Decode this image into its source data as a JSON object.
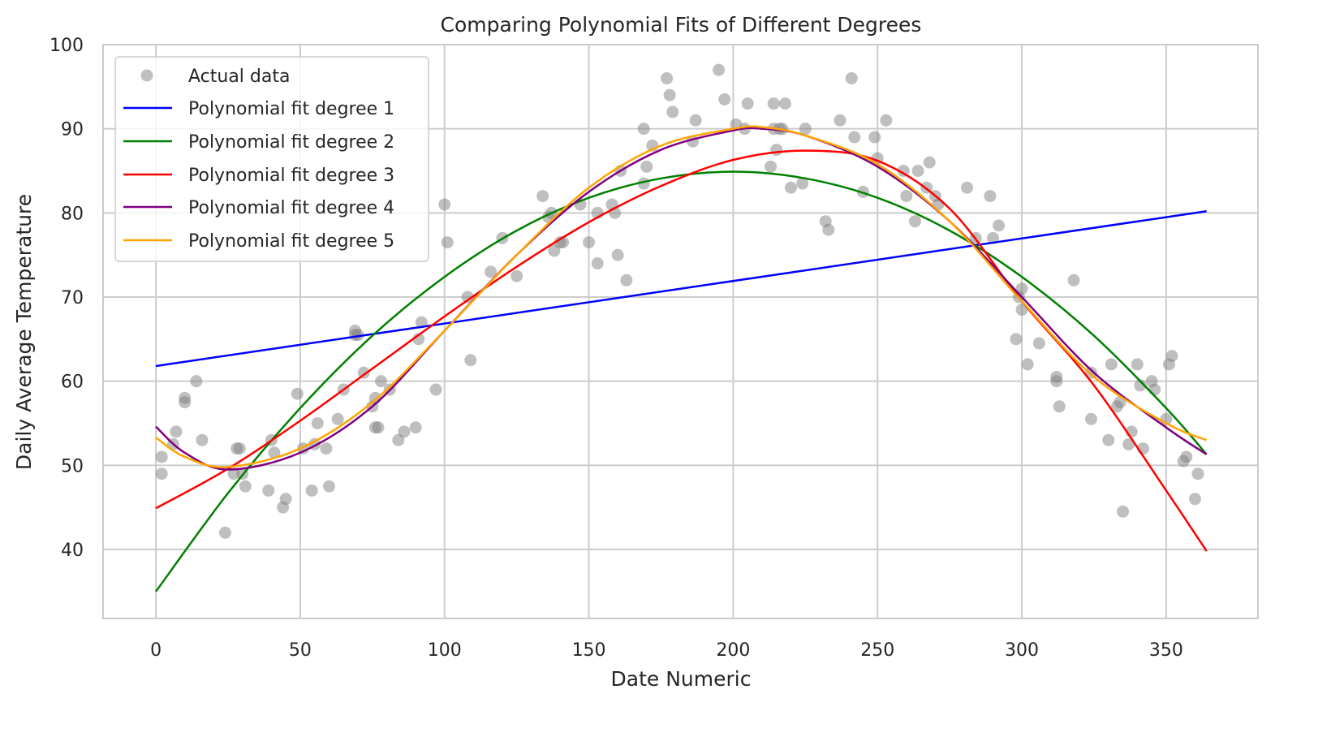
{
  "chart_data": {
    "type": "scatter",
    "title": "Comparing Polynomial Fits of Different Degrees",
    "xlabel": "Date Numeric",
    "ylabel": "Daily Average Temperature",
    "xlim": [
      -18.3,
      381.8
    ],
    "ylim": [
      31.8,
      100
    ],
    "xticks": [
      0,
      50,
      100,
      150,
      200,
      250,
      300,
      350
    ],
    "yticks": [
      40,
      50,
      60,
      70,
      80,
      90,
      100
    ],
    "grid": true,
    "legend_position": "top-left",
    "scatter": {
      "name": "Actual data",
      "color": "#808080",
      "points": [
        [
          2,
          51
        ],
        [
          2,
          49
        ],
        [
          7,
          54
        ],
        [
          6,
          52.5
        ],
        [
          10,
          58
        ],
        [
          10,
          57.5
        ],
        [
          14,
          60
        ],
        [
          16,
          53
        ],
        [
          24,
          42
        ],
        [
          27,
          49
        ],
        [
          28,
          52
        ],
        [
          29,
          52
        ],
        [
          30,
          49
        ],
        [
          31,
          47.5
        ],
        [
          39,
          47
        ],
        [
          40,
          53
        ],
        [
          41,
          51.5
        ],
        [
          44,
          45
        ],
        [
          45,
          46
        ],
        [
          49,
          58.5
        ],
        [
          51,
          52
        ],
        [
          54,
          47
        ],
        [
          55,
          52.5
        ],
        [
          56,
          55
        ],
        [
          59,
          52
        ],
        [
          60,
          47.5
        ],
        [
          63,
          55.5
        ],
        [
          65,
          59
        ],
        [
          69,
          66
        ],
        [
          69,
          65.5
        ],
        [
          70,
          65.5
        ],
        [
          72,
          61
        ],
        [
          75,
          57
        ],
        [
          76,
          54.5
        ],
        [
          76,
          58
        ],
        [
          77,
          54.5
        ],
        [
          78,
          60
        ],
        [
          81,
          59
        ],
        [
          84,
          53
        ],
        [
          86,
          54
        ],
        [
          90,
          54.5
        ],
        [
          91,
          65
        ],
        [
          92,
          67
        ],
        [
          97,
          59
        ],
        [
          100,
          81
        ],
        [
          101,
          76.5
        ],
        [
          108,
          70
        ],
        [
          109,
          62.5
        ],
        [
          116,
          73
        ],
        [
          120,
          77
        ],
        [
          125,
          72.5
        ],
        [
          134,
          82
        ],
        [
          136,
          79.5
        ],
        [
          137,
          80
        ],
        [
          138,
          75.5
        ],
        [
          140,
          76.5
        ],
        [
          141,
          76.5
        ],
        [
          147,
          81
        ],
        [
          150,
          76.5
        ],
        [
          153,
          74
        ],
        [
          153,
          80
        ],
        [
          158,
          81
        ],
        [
          159,
          80
        ],
        [
          160,
          75
        ],
        [
          161,
          85
        ],
        [
          163,
          72
        ],
        [
          169,
          90
        ],
        [
          169,
          83.5
        ],
        [
          170,
          85.5
        ],
        [
          172,
          88
        ],
        [
          177,
          96
        ],
        [
          178,
          94
        ],
        [
          179,
          92
        ],
        [
          186,
          88.5
        ],
        [
          187,
          91
        ],
        [
          195,
          97
        ],
        [
          197,
          93.5
        ],
        [
          201,
          90.5
        ],
        [
          204,
          90
        ],
        [
          205,
          93
        ],
        [
          213,
          85.5
        ],
        [
          214,
          93
        ],
        [
          214,
          90
        ],
        [
          215,
          87.5
        ],
        [
          216,
          90
        ],
        [
          217,
          90
        ],
        [
          218,
          93
        ],
        [
          220,
          83
        ],
        [
          224,
          83.5
        ],
        [
          225,
          90
        ],
        [
          232,
          79
        ],
        [
          233,
          78
        ],
        [
          237,
          91
        ],
        [
          241,
          96
        ],
        [
          242,
          89
        ],
        [
          245,
          82.5
        ],
        [
          249,
          89
        ],
        [
          250,
          86.5
        ],
        [
          253,
          91
        ],
        [
          259,
          85
        ],
        [
          260,
          82
        ],
        [
          263,
          79
        ],
        [
          264,
          85
        ],
        [
          267,
          83
        ],
        [
          268,
          86
        ],
        [
          270,
          82
        ],
        [
          271,
          81
        ],
        [
          281,
          83
        ],
        [
          284,
          77
        ],
        [
          289,
          82
        ],
        [
          290,
          77
        ],
        [
          292,
          78.5
        ],
        [
          298,
          65
        ],
        [
          299,
          70
        ],
        [
          300,
          68.5
        ],
        [
          300,
          71
        ],
        [
          302,
          62
        ],
        [
          306,
          64.5
        ],
        [
          312,
          60.5
        ],
        [
          312,
          60
        ],
        [
          313,
          57
        ],
        [
          318,
          72
        ],
        [
          324,
          55.5
        ],
        [
          324,
          61
        ],
        [
          330,
          53
        ],
        [
          331,
          62
        ],
        [
          333,
          57
        ],
        [
          334,
          57.5
        ],
        [
          335,
          44.5
        ],
        [
          337,
          52.5
        ],
        [
          338,
          54
        ],
        [
          340,
          62
        ],
        [
          341,
          59.5
        ],
        [
          342,
          52
        ],
        [
          345,
          60
        ],
        [
          346,
          59
        ],
        [
          350,
          55.5
        ],
        [
          351,
          62
        ],
        [
          352,
          63
        ],
        [
          356,
          50.5
        ],
        [
          357,
          51
        ],
        [
          360,
          46
        ],
        [
          361,
          49
        ]
      ]
    },
    "series": [
      {
        "name": "Polynomial fit degree 1",
        "color": "#0000ff",
        "points": [
          [
            0,
            61.8
          ],
          [
            364,
            80.2
          ]
        ]
      },
      {
        "name": "Polynomial fit degree 2",
        "color": "#008000",
        "points": [
          [
            0,
            35
          ],
          [
            25,
            46.7
          ],
          [
            50,
            56.8
          ],
          [
            75,
            65.4
          ],
          [
            100,
            72.4
          ],
          [
            125,
            77.9
          ],
          [
            150,
            81.8
          ],
          [
            175,
            84.1
          ],
          [
            200,
            84.9
          ],
          [
            225,
            84.1
          ],
          [
            250,
            81.8
          ],
          [
            275,
            77.9
          ],
          [
            300,
            72.4
          ],
          [
            325,
            65.4
          ],
          [
            350,
            56.8
          ],
          [
            364,
            51.3
          ]
        ]
      },
      {
        "name": "Polynomial fit degree 3",
        "color": "#ff0000",
        "points": [
          [
            0,
            44.9
          ],
          [
            25,
            49.6
          ],
          [
            50,
            55.3
          ],
          [
            75,
            61.5
          ],
          [
            100,
            67.7
          ],
          [
            125,
            73.6
          ],
          [
            150,
            78.9
          ],
          [
            175,
            83.2
          ],
          [
            200,
            86.3
          ],
          [
            225,
            87.4
          ],
          [
            250,
            86.2
          ],
          [
            275,
            80.5
          ],
          [
            300,
            69.5
          ],
          [
            325,
            59.5
          ],
          [
            350,
            47
          ],
          [
            364,
            39.8
          ]
        ]
      },
      {
        "name": "Polynomial fit degree 4",
        "color": "#800080",
        "points": [
          [
            0,
            54.6
          ],
          [
            10,
            51.5
          ],
          [
            25,
            49.5
          ],
          [
            50,
            51.5
          ],
          [
            75,
            57
          ],
          [
            100,
            66
          ],
          [
            125,
            75
          ],
          [
            150,
            82.5
          ],
          [
            175,
            87.5
          ],
          [
            200,
            89.8
          ],
          [
            210,
            90
          ],
          [
            225,
            89.2
          ],
          [
            250,
            85.5
          ],
          [
            275,
            79
          ],
          [
            300,
            70
          ],
          [
            325,
            61
          ],
          [
            350,
            54.5
          ],
          [
            364,
            51.3
          ]
        ]
      },
      {
        "name": "Polynomial fit degree 5",
        "color": "#ffa500",
        "points": [
          [
            0,
            53.3
          ],
          [
            10,
            51
          ],
          [
            25,
            49.8
          ],
          [
            50,
            52
          ],
          [
            75,
            57.5
          ],
          [
            100,
            66
          ],
          [
            125,
            75
          ],
          [
            150,
            83
          ],
          [
            175,
            88
          ],
          [
            200,
            90
          ],
          [
            210,
            90.2
          ],
          [
            225,
            89.2
          ],
          [
            250,
            85.8
          ],
          [
            275,
            79
          ],
          [
            300,
            69.5
          ],
          [
            325,
            60.5
          ],
          [
            350,
            55
          ],
          [
            364,
            53
          ]
        ]
      }
    ]
  }
}
